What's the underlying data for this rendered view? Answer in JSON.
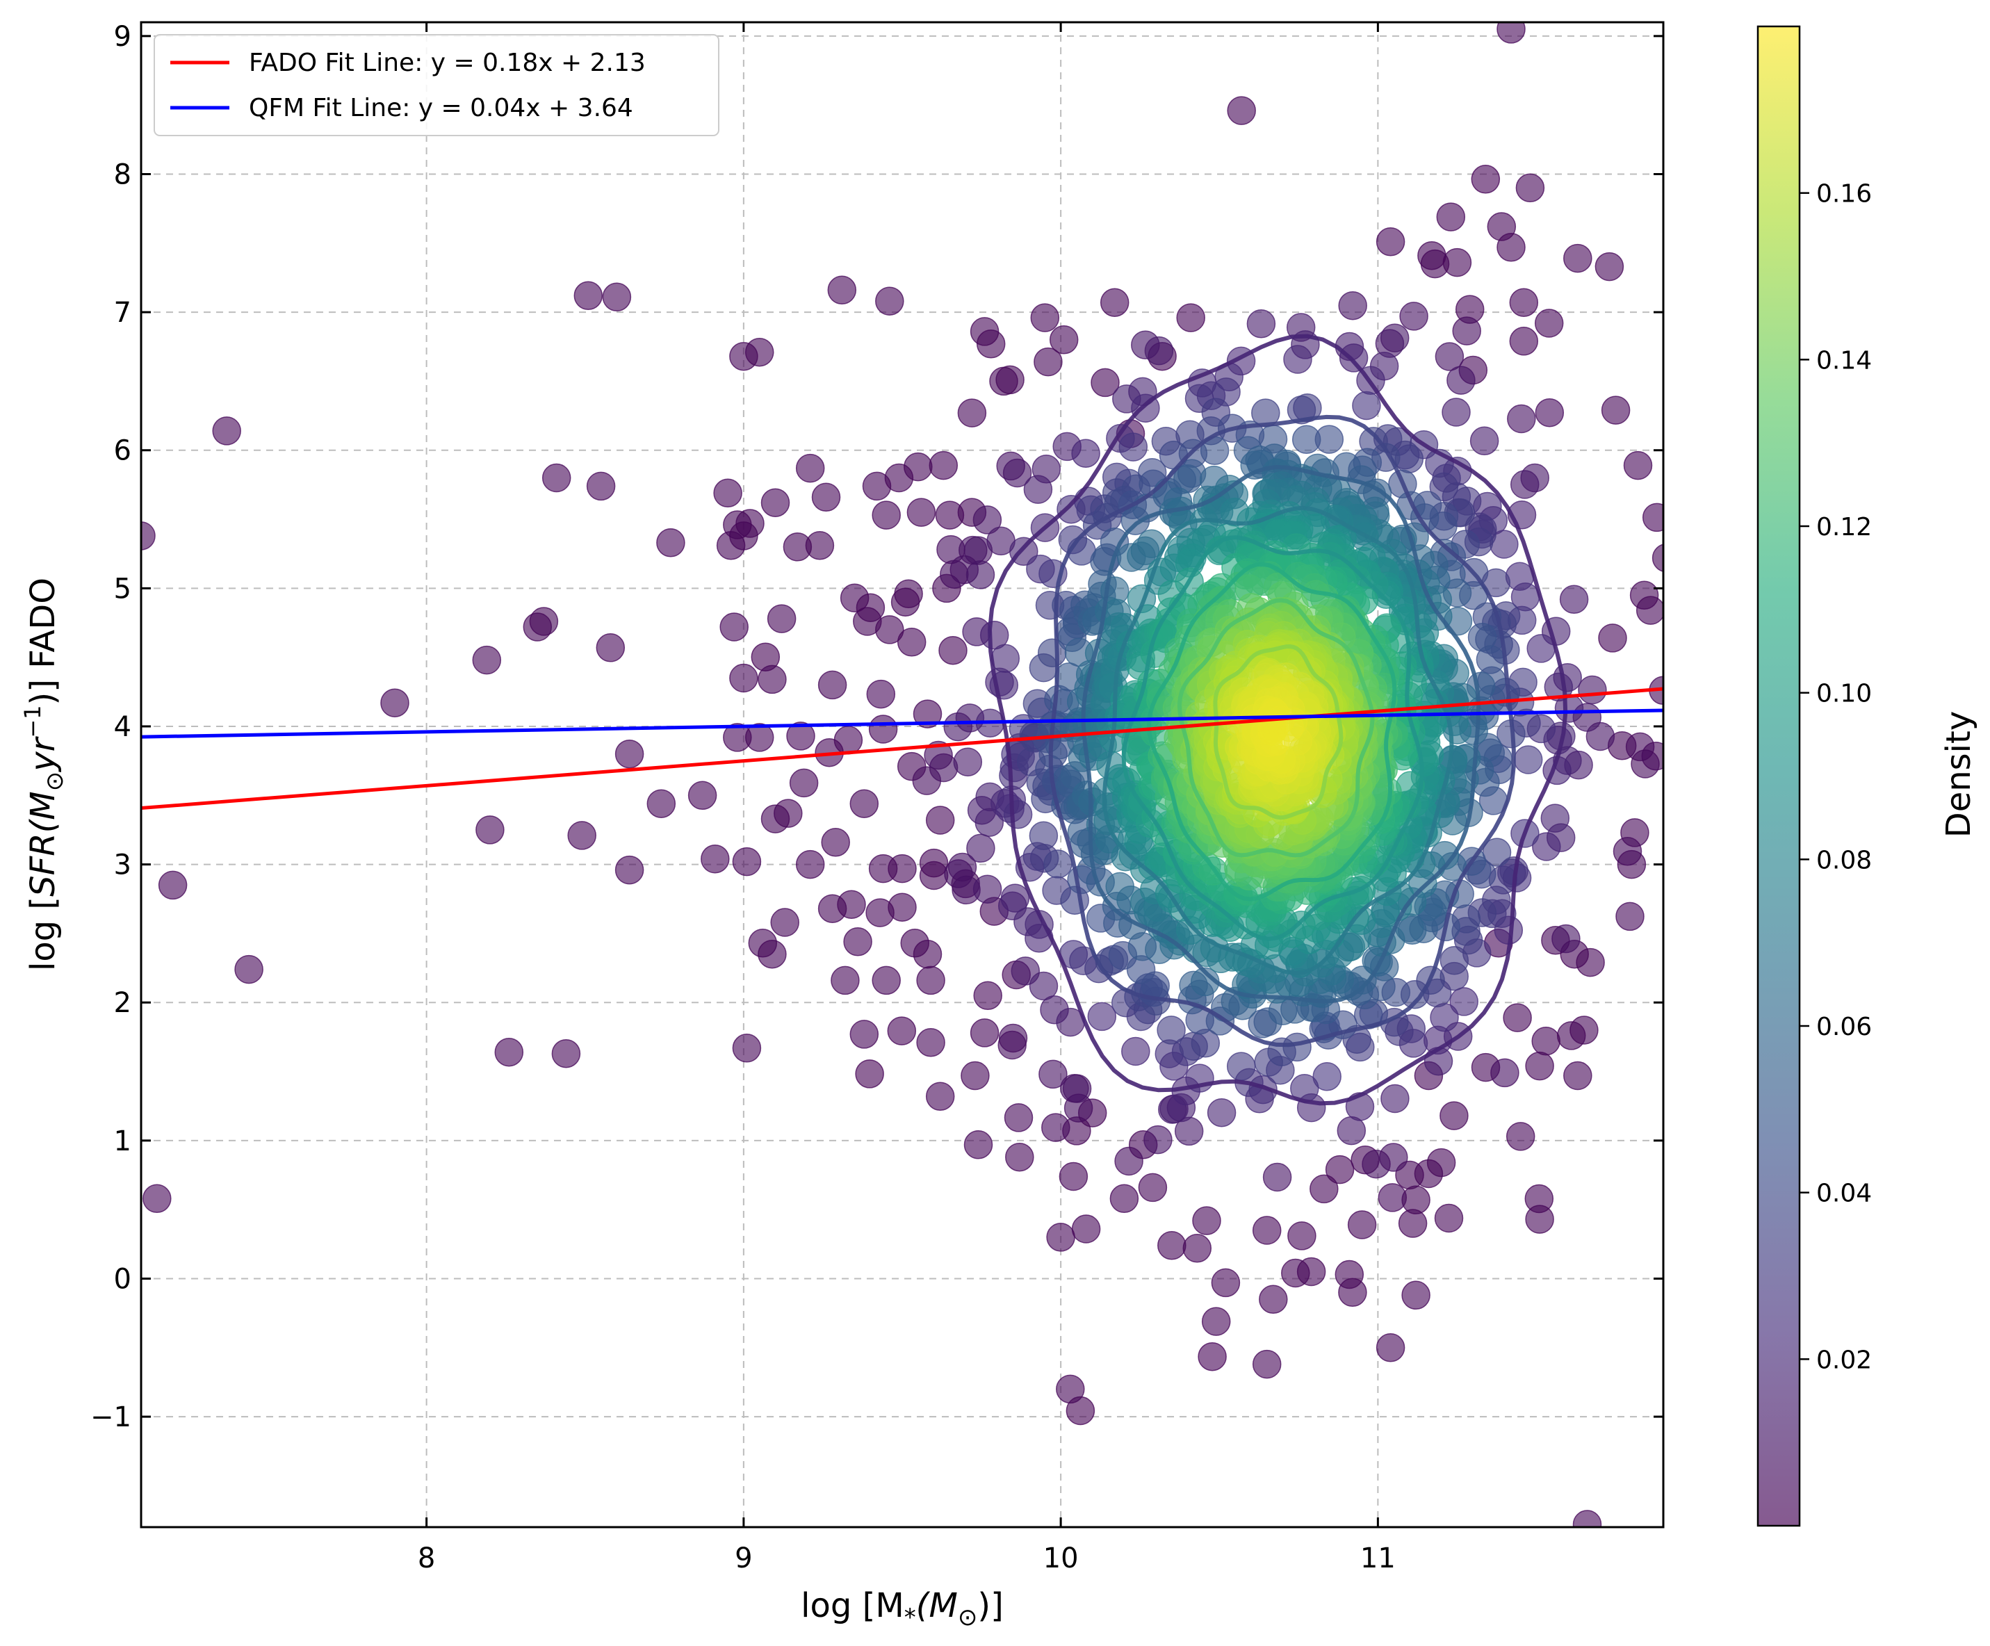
{
  "chart_data": {
    "type": "scatter",
    "title": "",
    "xlabel_parts": [
      "log [M",
      "*",
      "(M",
      "⊙",
      ")]"
    ],
    "ylabel_parts": [
      "log [",
      "SFR",
      "(M",
      "⊙",
      "yr",
      "−1",
      ")] FADO"
    ],
    "xlim": [
      7.1,
      11.9
    ],
    "ylim": [
      -1.8,
      9.1
    ],
    "xticks": [
      8,
      9,
      10,
      11
    ],
    "yticks": [
      -1,
      0,
      1,
      2,
      3,
      4,
      5,
      6,
      7,
      8,
      9
    ],
    "xtick_labels": [
      "8",
      "9",
      "10",
      "11"
    ],
    "ytick_labels": [
      "−1",
      "0",
      "1",
      "2",
      "3",
      "4",
      "5",
      "6",
      "7",
      "8",
      "9"
    ],
    "grid": true,
    "legend_position": "top-left",
    "colorbar": {
      "label": "Density",
      "range": [
        0.0,
        0.18
      ],
      "ticks": [
        0.02,
        0.04,
        0.06,
        0.08,
        0.1,
        0.12,
        0.14,
        0.16
      ],
      "tick_labels": [
        "0.02",
        "0.04",
        "0.06",
        "0.08",
        "0.10",
        "0.12",
        "0.14",
        "0.16"
      ],
      "colormap": "viridis"
    },
    "fit_lines": [
      {
        "name": "FADO Fit Line: y = 0.18x + 2.13",
        "slope": 0.18,
        "intercept": 2.13,
        "color": "#ff0000"
      },
      {
        "name": "QFM Fit Line: y = 0.04x + 3.64",
        "slope": 0.04,
        "intercept": 3.64,
        "color": "#0000ff"
      }
    ],
    "outlier_points": [
      [
        7.1,
        5.38
      ],
      [
        7.15,
        0.58
      ],
      [
        7.2,
        2.85
      ],
      [
        7.37,
        6.14
      ],
      [
        7.44,
        2.24
      ],
      [
        7.9,
        4.17
      ],
      [
        8.19,
        4.48
      ],
      [
        8.2,
        3.25
      ],
      [
        8.26,
        1.64
      ],
      [
        8.35,
        4.72
      ],
      [
        8.37,
        4.76
      ],
      [
        8.41,
        5.8
      ],
      [
        8.44,
        1.63
      ],
      [
        8.49,
        3.21
      ],
      [
        8.51,
        7.12
      ],
      [
        8.55,
        5.74
      ],
      [
        8.58,
        4.57
      ],
      [
        8.6,
        7.11
      ],
      [
        8.64,
        3.8
      ],
      [
        8.64,
        2.96
      ],
      [
        8.74,
        3.44
      ],
      [
        8.77,
        5.33
      ],
      [
        8.87,
        3.5
      ],
      [
        8.91,
        3.04
      ],
      [
        8.95,
        5.69
      ],
      [
        8.96,
        5.31
      ],
      [
        8.97,
        4.72
      ],
      [
        8.98,
        5.46
      ],
      [
        8.98,
        3.92
      ],
      [
        9.0,
        6.68
      ],
      [
        9.0,
        4.35
      ],
      [
        9.0,
        5.38
      ],
      [
        9.01,
        3.02
      ],
      [
        9.01,
        1.67
      ],
      [
        9.02,
        5.47
      ],
      [
        9.05,
        6.71
      ],
      [
        9.05,
        3.92
      ],
      [
        9.06,
        2.43
      ],
      [
        9.09,
        2.35
      ],
      [
        9.09,
        4.34
      ],
      [
        9.1,
        5.62
      ],
      [
        9.1,
        3.33
      ],
      [
        9.12,
        4.78
      ],
      [
        9.13,
        2.58
      ],
      [
        9.14,
        3.37
      ],
      [
        9.17,
        5.3
      ],
      [
        9.18,
        3.93
      ],
      [
        9.19,
        3.59
      ],
      [
        9.21,
        3.0
      ],
      [
        9.21,
        5.87
      ],
      [
        9.24,
        5.31
      ],
      [
        9.26,
        5.66
      ],
      [
        9.27,
        3.81
      ],
      [
        9.28,
        4.3
      ],
      [
        9.28,
        2.68
      ],
      [
        9.29,
        3.16
      ],
      [
        9.31,
        7.16
      ],
      [
        9.32,
        2.16
      ],
      [
        9.33,
        3.9
      ],
      [
        9.34,
        2.71
      ],
      [
        9.35,
        4.93
      ],
      [
        9.36,
        2.44
      ],
      [
        9.38,
        1.77
      ],
      [
        9.38,
        3.44
      ],
      [
        9.39,
        4.76
      ],
      [
        9.4,
        4.86
      ],
      [
        9.42,
        5.74
      ],
      [
        9.43,
        2.65
      ],
      [
        9.44,
        2.97
      ],
      [
        9.44,
        3.98
      ],
      [
        9.45,
        2.16
      ],
      [
        9.45,
        5.53
      ],
      [
        9.46,
        4.7
      ],
      [
        9.46,
        7.08
      ],
      [
        9.49,
        5.8
      ],
      [
        9.5,
        2.69
      ],
      [
        9.5,
        2.97
      ],
      [
        9.51,
        4.9
      ],
      [
        9.52,
        4.96
      ],
      [
        9.53,
        3.71
      ],
      [
        9.53,
        4.61
      ],
      [
        9.54,
        2.43
      ],
      [
        9.55,
        5.88
      ],
      [
        9.56,
        5.55
      ],
      [
        9.58,
        2.35
      ],
      [
        9.58,
        4.09
      ],
      [
        9.59,
        2.16
      ],
      [
        9.59,
        1.71
      ],
      [
        9.6,
        3.01
      ],
      [
        9.6,
        2.92
      ],
      [
        9.62,
        1.32
      ],
      [
        9.62,
        3.32
      ],
      [
        9.63,
        5.89
      ],
      [
        9.64,
        5.0
      ],
      [
        9.65,
        5.53
      ],
      [
        9.66,
        4.55
      ],
      [
        9.7,
        2.86
      ],
      [
        9.72,
        5.55
      ],
      [
        9.72,
        6.27
      ],
      [
        9.73,
        1.47
      ],
      [
        9.74,
        0.97
      ],
      [
        9.76,
        1.78
      ],
      [
        9.76,
        6.86
      ],
      [
        9.77,
        2.05
      ],
      [
        9.78,
        6.77
      ],
      [
        9.79,
        2.66
      ],
      [
        9.82,
        6.5
      ],
      [
        9.84,
        6.51
      ],
      [
        9.86,
        2.2
      ],
      [
        9.87,
        0.88
      ],
      [
        9.95,
        6.96
      ],
      [
        9.96,
        6.64
      ],
      [
        10.0,
        0.3
      ],
      [
        10.01,
        6.8
      ],
      [
        10.03,
        -0.8
      ],
      [
        10.04,
        0.74
      ],
      [
        10.05,
        1.07
      ],
      [
        10.08,
        0.36
      ],
      [
        10.1,
        1.2
      ],
      [
        10.14,
        6.49
      ],
      [
        10.17,
        7.07
      ],
      [
        10.2,
        0.58
      ],
      [
        10.22,
        6.12
      ],
      [
        10.26,
        0.97
      ],
      [
        10.29,
        0.66
      ],
      [
        10.32,
        6.68
      ],
      [
        10.35,
        0.24
      ],
      [
        10.41,
        6.96
      ],
      [
        10.43,
        0.22
      ],
      [
        10.46,
        0.42
      ],
      [
        10.49,
        -0.31
      ],
      [
        10.52,
        -0.03
      ],
      [
        10.57,
        8.46
      ],
      [
        10.65,
        0.35
      ],
      [
        10.65,
        -0.62
      ],
      [
        10.67,
        -0.15
      ],
      [
        10.74,
        0.04
      ],
      [
        10.76,
        0.31
      ],
      [
        10.79,
        0.05
      ],
      [
        10.83,
        0.65
      ],
      [
        10.88,
        0.79
      ],
      [
        10.91,
        0.03
      ],
      [
        10.92,
        -0.1
      ],
      [
        10.95,
        0.39
      ],
      [
        10.96,
        0.86
      ],
      [
        11.04,
        7.51
      ],
      [
        11.04,
        -0.5
      ],
      [
        11.1,
        0.75
      ],
      [
        11.11,
        0.4
      ],
      [
        11.12,
        0.57
      ],
      [
        11.12,
        -0.12
      ],
      [
        11.16,
        0.76
      ],
      [
        11.16,
        1.47
      ],
      [
        11.17,
        7.41
      ],
      [
        11.18,
        7.35
      ],
      [
        11.2,
        0.84
      ],
      [
        11.23,
        7.69
      ],
      [
        11.24,
        1.18
      ],
      [
        11.25,
        7.36
      ],
      [
        11.29,
        7.02
      ],
      [
        11.3,
        6.58
      ],
      [
        11.34,
        1.53
      ],
      [
        11.38,
        2.43
      ],
      [
        11.39,
        7.62
      ],
      [
        11.42,
        7.47
      ],
      [
        11.42,
        9.05
      ],
      [
        11.44,
        1.89
      ],
      [
        11.45,
        1.03
      ],
      [
        11.46,
        7.07
      ],
      [
        11.46,
        6.79
      ],
      [
        11.48,
        7.9
      ],
      [
        11.51,
        0.43
      ],
      [
        11.51,
        1.54
      ],
      [
        11.53,
        1.72
      ],
      [
        11.54,
        6.92
      ],
      [
        11.56,
        2.45
      ],
      [
        11.61,
        1.76
      ],
      [
        11.62,
        2.35
      ],
      [
        11.63,
        7.39
      ],
      [
        11.63,
        1.47
      ],
      [
        11.65,
        1.8
      ],
      [
        11.66,
        -1.78
      ],
      [
        11.67,
        2.29
      ],
      [
        11.73,
        7.33
      ],
      [
        11.74,
        4.64
      ],
      [
        11.75,
        6.29
      ],
      [
        11.77,
        3.86
      ],
      [
        11.8,
        3.0
      ],
      [
        11.81,
        3.23
      ],
      [
        11.82,
        5.89
      ],
      [
        11.84,
        4.95
      ],
      [
        11.86,
        4.84
      ],
      [
        11.9,
        4.26
      ],
      [
        11.91,
        5.22
      ]
    ],
    "density_cloud": {
      "center": [
        10.68,
        3.95
      ],
      "spread": [
        0.42,
        1.3
      ],
      "peak_density": 0.175
    },
    "contour_levels": [
      0.02,
      0.04,
      0.06,
      0.08,
      0.1,
      0.12,
      0.14,
      0.16
    ]
  }
}
